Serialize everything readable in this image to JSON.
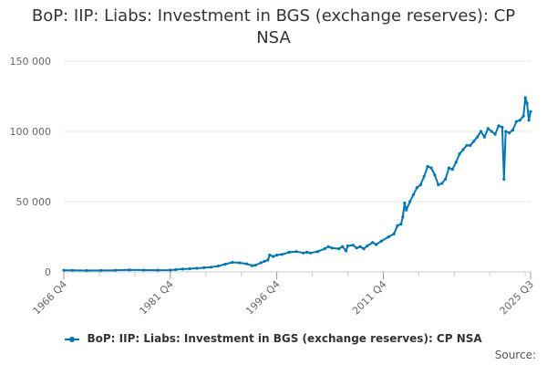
{
  "chart_data": {
    "type": "line",
    "title": "BoP: IIP: Liabs: Investment in BGS (exchange reserves): CP NSA",
    "title_lines": [
      "BoP: IIP: Liabs: Investment in BGS (exchange reserves): CP",
      "NSA"
    ],
    "xlabel": "",
    "ylabel": "",
    "x_ticks": [
      "1966 Q4",
      "1981 Q4",
      "1996 Q4",
      "2011 Q4",
      "2025 Q3"
    ],
    "y_ticks": [
      "0",
      "50 000",
      "100 000",
      "150 000"
    ],
    "ylim": [
      0,
      150000
    ],
    "grid": true,
    "legend_position": "bottom",
    "series": [
      {
        "name": "BoP: IIP: Liabs: Investment in BGS (exchange reserves): CP NSA",
        "color": "#0077b3",
        "points": [
          [
            1966.75,
            1200
          ],
          [
            1968.0,
            1100
          ],
          [
            1970.0,
            1000
          ],
          [
            1972.0,
            1050
          ],
          [
            1974.0,
            1200
          ],
          [
            1976.0,
            1400
          ],
          [
            1978.0,
            1300
          ],
          [
            1980.0,
            1250
          ],
          [
            1981.75,
            1300
          ],
          [
            1982.5,
            1600
          ],
          [
            1983.5,
            2000
          ],
          [
            1984.5,
            2300
          ],
          [
            1985.5,
            2600
          ],
          [
            1986.5,
            3000
          ],
          [
            1987.5,
            3400
          ],
          [
            1988.5,
            4200
          ],
          [
            1989.5,
            5500
          ],
          [
            1990.5,
            6800
          ],
          [
            1991.5,
            6500
          ],
          [
            1992.5,
            5800
          ],
          [
            1993.25,
            4500
          ],
          [
            1993.75,
            4800
          ],
          [
            1994.5,
            6500
          ],
          [
            1995.0,
            7500
          ],
          [
            1995.5,
            8500
          ],
          [
            1995.75,
            12000
          ],
          [
            1996.25,
            11000
          ],
          [
            1996.75,
            12000
          ],
          [
            1997.5,
            12500
          ],
          [
            1998.5,
            14000
          ],
          [
            1999.5,
            14500
          ],
          [
            2000.5,
            13500
          ],
          [
            2001.0,
            14000
          ],
          [
            2001.5,
            13500
          ],
          [
            2002.5,
            14500
          ],
          [
            2003.5,
            16500
          ],
          [
            2004.0,
            18000
          ],
          [
            2004.5,
            17000
          ],
          [
            2005.5,
            16500
          ],
          [
            2006.0,
            18000
          ],
          [
            2006.5,
            15000
          ],
          [
            2006.75,
            18500
          ],
          [
            2007.5,
            19000
          ],
          [
            2008.0,
            17000
          ],
          [
            2008.5,
            18000
          ],
          [
            2009.0,
            16500
          ],
          [
            2009.5,
            18500
          ],
          [
            2010.25,
            21000
          ],
          [
            2010.75,
            19500
          ],
          [
            2011.5,
            22000
          ],
          [
            2012.5,
            25000
          ],
          [
            2013.25,
            27000
          ],
          [
            2013.75,
            33000
          ],
          [
            2014.25,
            34000
          ],
          [
            2014.5,
            39000
          ],
          [
            2014.75,
            49000
          ],
          [
            2015.0,
            44000
          ],
          [
            2015.5,
            50000
          ],
          [
            2016.0,
            55000
          ],
          [
            2016.5,
            60000
          ],
          [
            2017.0,
            62000
          ],
          [
            2017.5,
            68000
          ],
          [
            2018.0,
            75000
          ],
          [
            2018.5,
            74000
          ],
          [
            2019.0,
            69000
          ],
          [
            2019.5,
            62000
          ],
          [
            2020.0,
            63000
          ],
          [
            2020.5,
            66000
          ],
          [
            2021.0,
            74000
          ],
          [
            2021.5,
            73000
          ],
          [
            2022.0,
            78000
          ],
          [
            2022.5,
            84000
          ],
          [
            2023.0,
            87000
          ],
          [
            2023.5,
            90000
          ],
          [
            2024.0,
            90000
          ],
          [
            2024.5,
            93000
          ],
          [
            2025.0,
            96000
          ],
          [
            2025.5,
            100000
          ],
          [
            2026.0,
            96000
          ],
          [
            2026.5,
            102000
          ],
          [
            2027.0,
            100000
          ],
          [
            2027.5,
            98000
          ],
          [
            2028.0,
            104000
          ],
          [
            2028.5,
            103000
          ],
          [
            2028.75,
            66000
          ],
          [
            2029.0,
            100000
          ],
          [
            2029.5,
            99000
          ],
          [
            2030.0,
            101000
          ],
          [
            2030.5,
            107000
          ],
          [
            2031.0,
            108000
          ],
          [
            2031.5,
            111000
          ],
          [
            2031.75,
            124000
          ],
          [
            2032.0,
            120000
          ],
          [
            2032.25,
            108000
          ],
          [
            2032.5,
            114000
          ]
        ]
      }
    ]
  },
  "legend": {
    "label": "BoP: IIP: Liabs: Investment in BGS (exchange reserves): CP NSA"
  },
  "source": {
    "label": "Source:"
  }
}
